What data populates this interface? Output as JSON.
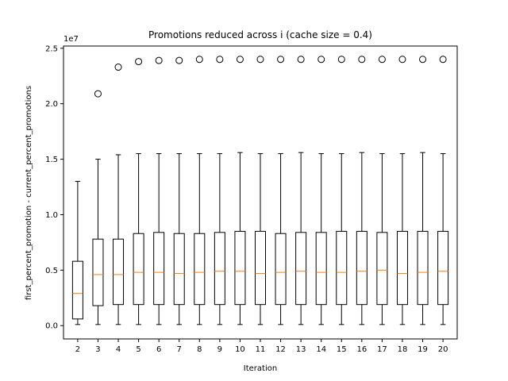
{
  "chart_data": {
    "type": "box",
    "title": "Promotions reduced across i (cache size = 0.4)",
    "xlabel": "Iteration",
    "ylabel": "first_percent_promotion - current_percent_promotions",
    "y_offset_label": "1e7",
    "ylim": [
      -0.12,
      2.52
    ],
    "x_ticks": [
      "2",
      "3",
      "4",
      "5",
      "6",
      "7",
      "8",
      "9",
      "10",
      "11",
      "12",
      "13",
      "14",
      "15",
      "16",
      "17",
      "18",
      "19",
      "20"
    ],
    "y_ticks": [
      {
        "value": 0.0,
        "label": "0.0"
      },
      {
        "value": 0.5,
        "label": "0.5"
      },
      {
        "value": 1.0,
        "label": "1.0"
      },
      {
        "value": 1.5,
        "label": "1.5"
      },
      {
        "value": 2.0,
        "label": "2.0"
      },
      {
        "value": 2.5,
        "label": "2.5"
      }
    ],
    "unit_multiplier": 10000000,
    "colors": {
      "box": "#000000",
      "median": "#ff7f0e",
      "flier": "#000000",
      "axes": "#000000"
    },
    "boxes": [
      {
        "label": "2",
        "whislo": 0.01,
        "q1": 0.06,
        "med": 0.29,
        "q3": 0.58,
        "whishi": 1.3,
        "fliers": []
      },
      {
        "label": "3",
        "whislo": 0.01,
        "q1": 0.18,
        "med": 0.46,
        "q3": 0.78,
        "whishi": 1.5,
        "fliers": [
          2.09
        ]
      },
      {
        "label": "4",
        "whislo": 0.01,
        "q1": 0.19,
        "med": 0.46,
        "q3": 0.78,
        "whishi": 1.54,
        "fliers": [
          2.33
        ]
      },
      {
        "label": "5",
        "whislo": 0.01,
        "q1": 0.19,
        "med": 0.48,
        "q3": 0.83,
        "whishi": 1.55,
        "fliers": [
          2.38
        ]
      },
      {
        "label": "6",
        "whislo": 0.01,
        "q1": 0.19,
        "med": 0.48,
        "q3": 0.84,
        "whishi": 1.55,
        "fliers": [
          2.39
        ]
      },
      {
        "label": "7",
        "whislo": 0.01,
        "q1": 0.19,
        "med": 0.47,
        "q3": 0.83,
        "whishi": 1.55,
        "fliers": [
          2.39
        ]
      },
      {
        "label": "8",
        "whislo": 0.01,
        "q1": 0.19,
        "med": 0.48,
        "q3": 0.83,
        "whishi": 1.55,
        "fliers": [
          2.4
        ]
      },
      {
        "label": "9",
        "whislo": 0.01,
        "q1": 0.19,
        "med": 0.49,
        "q3": 0.84,
        "whishi": 1.55,
        "fliers": [
          2.4
        ]
      },
      {
        "label": "10",
        "whislo": 0.01,
        "q1": 0.19,
        "med": 0.49,
        "q3": 0.85,
        "whishi": 1.56,
        "fliers": [
          2.4
        ]
      },
      {
        "label": "11",
        "whislo": 0.01,
        "q1": 0.19,
        "med": 0.47,
        "q3": 0.85,
        "whishi": 1.55,
        "fliers": [
          2.4
        ]
      },
      {
        "label": "12",
        "whislo": 0.01,
        "q1": 0.19,
        "med": 0.48,
        "q3": 0.83,
        "whishi": 1.55,
        "fliers": [
          2.4
        ]
      },
      {
        "label": "13",
        "whislo": 0.01,
        "q1": 0.19,
        "med": 0.49,
        "q3": 0.84,
        "whishi": 1.56,
        "fliers": [
          2.4
        ]
      },
      {
        "label": "14",
        "whislo": 0.01,
        "q1": 0.19,
        "med": 0.48,
        "q3": 0.84,
        "whishi": 1.55,
        "fliers": [
          2.4
        ]
      },
      {
        "label": "15",
        "whislo": 0.01,
        "q1": 0.19,
        "med": 0.48,
        "q3": 0.85,
        "whishi": 1.55,
        "fliers": [
          2.4
        ]
      },
      {
        "label": "16",
        "whislo": 0.01,
        "q1": 0.19,
        "med": 0.49,
        "q3": 0.85,
        "whishi": 1.56,
        "fliers": [
          2.4
        ]
      },
      {
        "label": "17",
        "whislo": 0.01,
        "q1": 0.19,
        "med": 0.5,
        "q3": 0.84,
        "whishi": 1.55,
        "fliers": [
          2.4
        ]
      },
      {
        "label": "18",
        "whislo": 0.01,
        "q1": 0.19,
        "med": 0.47,
        "q3": 0.85,
        "whishi": 1.55,
        "fliers": [
          2.4
        ]
      },
      {
        "label": "19",
        "whislo": 0.01,
        "q1": 0.19,
        "med": 0.48,
        "q3": 0.85,
        "whishi": 1.56,
        "fliers": [
          2.4
        ]
      },
      {
        "label": "20",
        "whislo": 0.01,
        "q1": 0.19,
        "med": 0.49,
        "q3": 0.85,
        "whishi": 1.55,
        "fliers": [
          2.4
        ]
      }
    ]
  }
}
